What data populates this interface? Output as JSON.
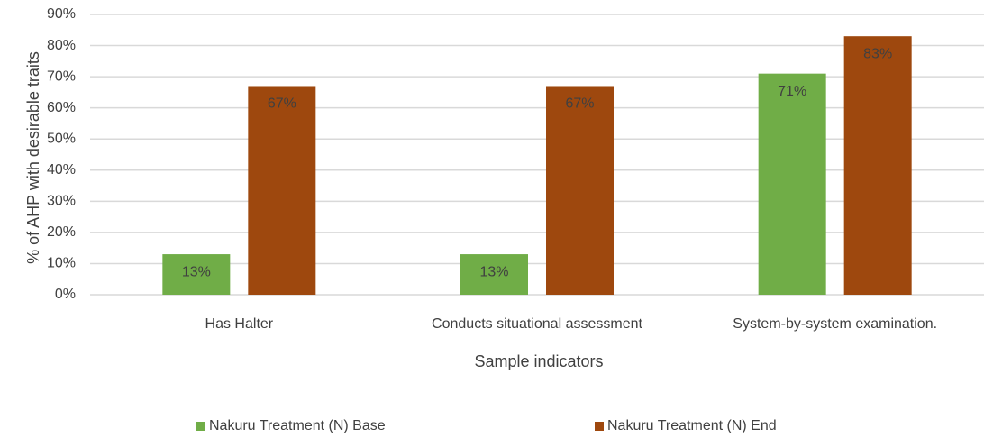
{
  "chart_data": {
    "type": "bar",
    "y_axis_label": "% of AHP with desirable traits",
    "x_axis_label": "Sample indicators",
    "categories": [
      "Has Halter",
      "Conducts situational assessment",
      "System-by-system examination."
    ],
    "series": [
      {
        "name": "Nakuru Treatment (N) Base",
        "color": "#70ad47",
        "values": [
          13,
          13,
          71
        ],
        "value_labels": [
          "13%",
          "13%",
          "71%"
        ]
      },
      {
        "name": "Nakuru Treatment (N) End",
        "color": "#9e480e",
        "values": [
          67,
          67,
          83
        ],
        "value_labels": [
          "67%",
          "67%",
          "83%"
        ]
      }
    ],
    "ylim": [
      0,
      90
    ],
    "yticks": [
      {
        "value": 0,
        "label": "0%"
      },
      {
        "value": 10,
        "label": "10%"
      },
      {
        "value": 20,
        "label": "20%"
      },
      {
        "value": 30,
        "label": "30%"
      },
      {
        "value": 40,
        "label": "40%"
      },
      {
        "value": 50,
        "label": "50%"
      },
      {
        "value": 60,
        "label": "60%"
      },
      {
        "value": 70,
        "label": "70%"
      },
      {
        "value": 80,
        "label": "80%"
      },
      {
        "value": 90,
        "label": "90%"
      }
    ],
    "grid": true,
    "legend": "bottom"
  }
}
